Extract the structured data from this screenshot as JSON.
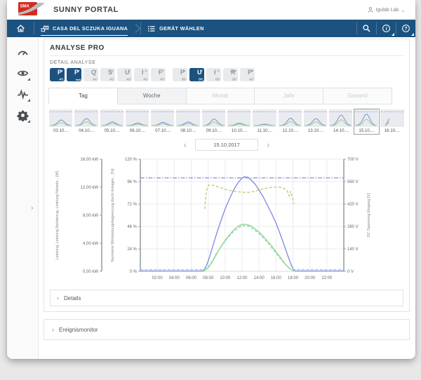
{
  "app": {
    "brand": "SMA",
    "title": "SUNNY PORTAL",
    "user": "Igulab Lab"
  },
  "navbar": {
    "plant": "CASA DEL SCZUKA IGUANA",
    "device_select": "GERÄT WÄHLEN"
  },
  "sidebar": {
    "items": [
      {
        "icon": "gauge-icon",
        "name": "dashboard",
        "has_submenu": false
      },
      {
        "icon": "eye-icon",
        "name": "monitoring",
        "has_submenu": true
      },
      {
        "icon": "pulse-icon",
        "name": "analysis",
        "has_submenu": true
      },
      {
        "icon": "gear-icon",
        "name": "configuration",
        "has_submenu": true
      }
    ]
  },
  "analysis": {
    "title": "ANALYSE PRO",
    "section_label": "DETAIL ANALYSE",
    "parameters": [
      {
        "label": "P",
        "sub": "AC",
        "selected": true
      },
      {
        "label": "P",
        "sub": "limit",
        "selected": true
      },
      {
        "label": "Q",
        "sub": "AC",
        "selected": false
      },
      {
        "label": "S",
        "sub": "AC",
        "selected": false
      },
      {
        "label": "U",
        "sub": "AC",
        "selected": false
      },
      {
        "label": "I",
        "sub": "AC",
        "selected": false
      },
      {
        "label": "F",
        "sub": "AC",
        "selected": false
      },
      {
        "label": "P",
        "sub": "DC",
        "selected": false,
        "group_start": true
      },
      {
        "label": "U",
        "sub": "DC",
        "selected": true
      },
      {
        "label": "I",
        "sub": "DC",
        "selected": false
      },
      {
        "label": "R",
        "sup": "iso",
        "sub": "DC",
        "selected": false
      },
      {
        "label": "P′",
        "sub": "AC",
        "selected": false
      }
    ],
    "tabs": [
      {
        "label": "Tag",
        "state": "active"
      },
      {
        "label": "Woche",
        "state": "normal"
      },
      {
        "label": "Monat",
        "state": "disabled"
      },
      {
        "label": "Jahr",
        "state": "disabled"
      },
      {
        "label": "Gesamt",
        "state": "disabled"
      }
    ],
    "day_strip": {
      "selected_index": 12,
      "days": [
        {
          "date": "03.10....",
          "peak": 0.42
        },
        {
          "date": "04.10....",
          "peak": 0.52
        },
        {
          "date": "05.10....",
          "peak": 0.28
        },
        {
          "date": "06.10....",
          "peak": 0.18
        },
        {
          "date": "07.10....",
          "peak": 0.24
        },
        {
          "date": "08.10....",
          "peak": 0.27
        },
        {
          "date": "09.10....",
          "peak": 0.48
        },
        {
          "date": "10.10....",
          "peak": 0.18
        },
        {
          "date": "11.10....",
          "peak": 0.1
        },
        {
          "date": "12.10....",
          "peak": 0.55
        },
        {
          "date": "13.10....",
          "peak": 0.52
        },
        {
          "date": "14.10....",
          "peak": 0.78
        },
        {
          "date": "15.10....",
          "peak": 0.85
        },
        {
          "date": "16.10....",
          "peak": 0.5,
          "profile": "rising"
        }
      ]
    },
    "date_nav": {
      "prev": "‹",
      "value": "15.10.2017",
      "next": "›"
    }
  },
  "chart_data": {
    "type": "line",
    "title": "",
    "grid": true,
    "x_range_hours": [
      0,
      24
    ],
    "x_ticks": [
      "02:00",
      "04:00",
      "06:00",
      "08:00",
      "10:00",
      "12:00",
      "14:00",
      "16:00",
      "18:00",
      "20:00",
      "22:00"
    ],
    "axes": {
      "kw": {
        "side": "left-outer",
        "label": "Leistung, Leistung Netzbezug, Leistung Netzein... [W]",
        "ticks": [
          "16,00 kW",
          "12,00 kW",
          "8,00 kW",
          "4,00 kW",
          "0,00 kW"
        ],
        "max": 16
      },
      "pct": {
        "side": "left-inner",
        "label": "Normierte Wirkleistungsbegrenzung durch Anlagen... [%]",
        "ticks": [
          "120 %",
          "96 %",
          "72 %",
          "48 %",
          "24 %",
          "0 %"
        ],
        "max": 120
      },
      "v": {
        "side": "right",
        "label": "DC Spannung Eingang [V]",
        "ticks": [
          "700 V",
          "560 V",
          "420 V",
          "280 V",
          "140 V",
          "0 V"
        ],
        "max": 700
      }
    },
    "series": [
      {
        "name": "Normierte Wirkleistungsbegrenzung",
        "axis": "pct",
        "style": "dashdot",
        "color": "#8d97ea",
        "points": [
          [
            0,
            100
          ],
          [
            24,
            100
          ]
        ]
      },
      {
        "name": "DC Spannung Eingang",
        "axis": "v",
        "style": "dash",
        "color": "#bdcb6c",
        "points": [
          [
            7.6,
            390
          ],
          [
            7.75,
            480
          ],
          [
            7.9,
            525
          ],
          [
            8.1,
            540
          ],
          [
            8.5,
            538
          ],
          [
            9,
            530
          ],
          [
            9.5,
            522
          ],
          [
            10,
            512
          ],
          [
            10.5,
            505
          ],
          [
            11,
            500
          ],
          [
            11.5,
            496
          ],
          [
            12,
            494
          ],
          [
            12.5,
            492
          ],
          [
            13,
            494
          ],
          [
            13.5,
            500
          ],
          [
            14,
            508
          ],
          [
            14.5,
            515
          ],
          [
            15,
            520
          ],
          [
            15.5,
            524
          ],
          [
            16,
            526
          ],
          [
            16.5,
            524
          ],
          [
            17,
            516
          ],
          [
            17.3,
            505
          ],
          [
            17.55,
            470
          ],
          [
            17.7,
            500
          ],
          [
            17.9,
            470
          ],
          [
            18.1,
            420
          ]
        ]
      },
      {
        "name": "Leistung",
        "axis": "kw",
        "style": "solid",
        "color": "#7e88e0",
        "points": [
          [
            0,
            0.05
          ],
          [
            7.4,
            0.05
          ],
          [
            7.8,
            0.8
          ],
          [
            8.2,
            2.2
          ],
          [
            8.6,
            3.8
          ],
          [
            9,
            5.4
          ],
          [
            9.5,
            7.2
          ],
          [
            10,
            8.9
          ],
          [
            10.5,
            10.3
          ],
          [
            11,
            11.6
          ],
          [
            11.5,
            12.6
          ],
          [
            12,
            13.3
          ],
          [
            12.3,
            13.5
          ],
          [
            12.7,
            13.4
          ],
          [
            13,
            13.1
          ],
          [
            13.5,
            12.5
          ],
          [
            14,
            11.6
          ],
          [
            14.5,
            10.6
          ],
          [
            15,
            9.4
          ],
          [
            15.5,
            8.2
          ],
          [
            16,
            6.9
          ],
          [
            16.5,
            5.3
          ],
          [
            17,
            3.6
          ],
          [
            17.4,
            2.2
          ],
          [
            17.8,
            0.9
          ],
          [
            18.1,
            0.2
          ],
          [
            18.3,
            0.05
          ],
          [
            24,
            0.05
          ]
        ]
      },
      {
        "name": "Leistung Netzbezug",
        "axis": "kw",
        "style": "dash",
        "color": "#7ed9d2",
        "points": [
          [
            0,
            0.25
          ],
          [
            7.4,
            0.25
          ],
          [
            8,
            0.6
          ],
          [
            8.5,
            1.5
          ],
          [
            9,
            2.6
          ],
          [
            10,
            4.3
          ],
          [
            11,
            5.7
          ],
          [
            12,
            6.5
          ],
          [
            12.5,
            6.55
          ],
          [
            13,
            6.3
          ],
          [
            14,
            5.4
          ],
          [
            15,
            4.1
          ],
          [
            16,
            2.6
          ],
          [
            17,
            1.1
          ],
          [
            17.6,
            0.4
          ],
          [
            18.2,
            0.25
          ],
          [
            24,
            0.25
          ]
        ]
      },
      {
        "name": "Leistung Netzeinspeisung",
        "axis": "kw",
        "style": "solid",
        "color": "#90d57e",
        "points": [
          [
            7.5,
            0.05
          ],
          [
            8,
            0.5
          ],
          [
            8.5,
            1.4
          ],
          [
            9,
            2.5
          ],
          [
            9.5,
            3.5
          ],
          [
            10,
            4.4
          ],
          [
            10.5,
            5.2
          ],
          [
            11,
            5.9
          ],
          [
            11.5,
            6.4
          ],
          [
            12,
            6.7
          ],
          [
            12.5,
            6.7
          ],
          [
            13,
            6.5
          ],
          [
            13.5,
            6.1
          ],
          [
            14,
            5.6
          ],
          [
            14.5,
            5.0
          ],
          [
            15,
            4.3
          ],
          [
            15.5,
            3.6
          ],
          [
            16,
            2.8
          ],
          [
            16.5,
            2.0
          ],
          [
            17,
            1.2
          ],
          [
            17.5,
            0.5
          ],
          [
            18,
            0.1
          ],
          [
            18.2,
            0.05
          ]
        ]
      }
    ]
  },
  "sections": {
    "details": "Details",
    "events": "Ereignismonitor"
  },
  "colors": {
    "navbar": "#1b5280",
    "brand_red": "#d52b1e",
    "series_power": "#7e88e0",
    "series_limit": "#8d97ea",
    "series_voltage": "#bdcb6c",
    "series_feedin": "#90d57e",
    "series_grid": "#7ed9d2"
  }
}
